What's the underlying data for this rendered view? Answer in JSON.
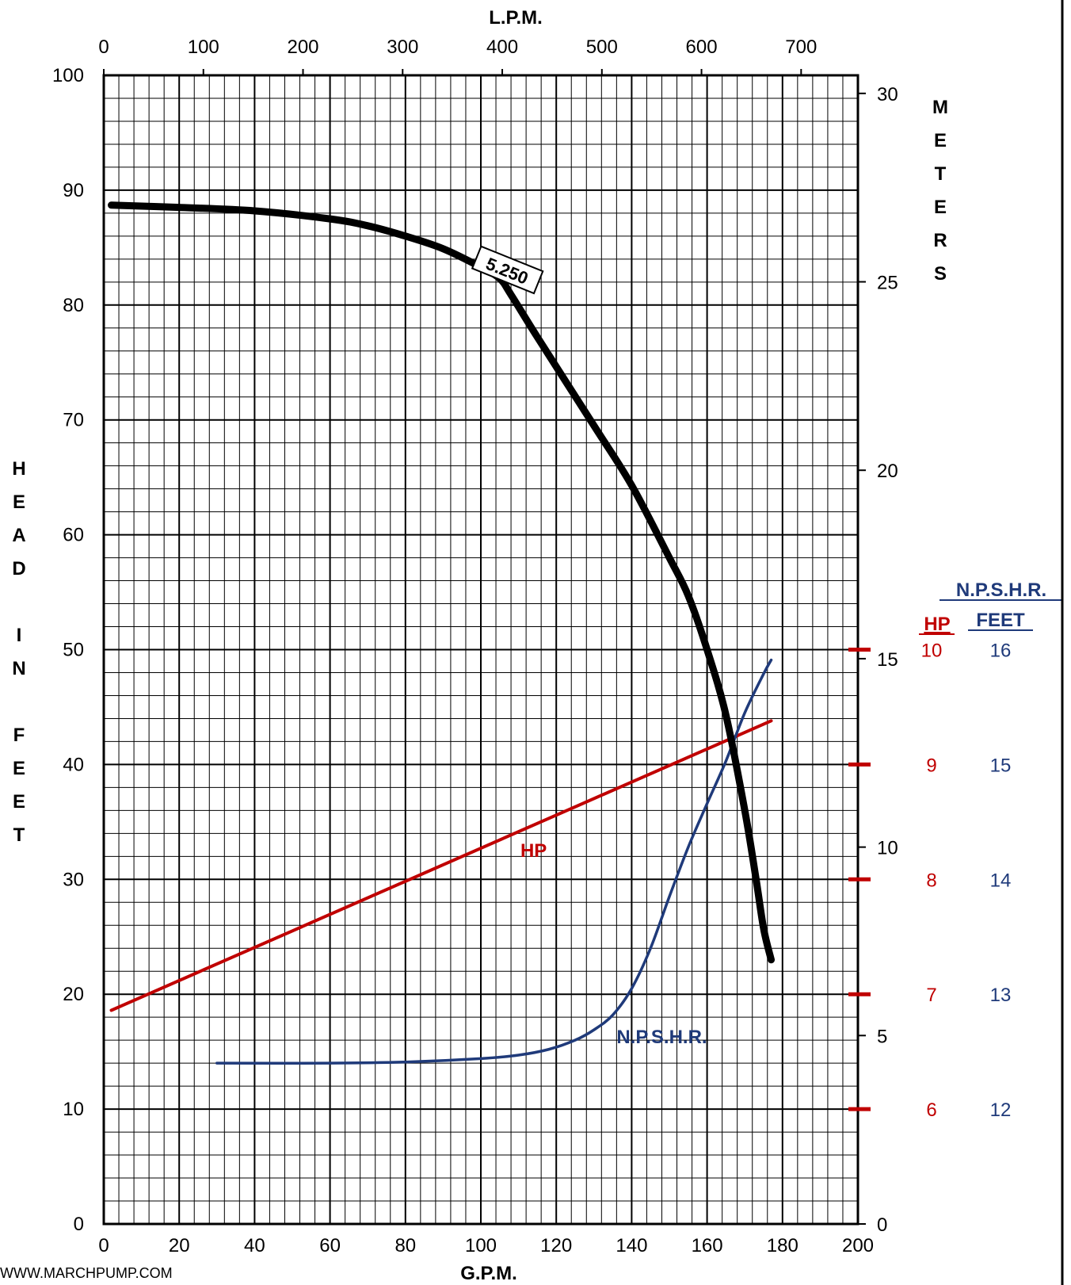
{
  "chart_data": {
    "type": "line",
    "x_axis": {
      "label": "G.P.M.",
      "range": [
        0,
        200
      ],
      "ticks": [
        0,
        20,
        40,
        60,
        80,
        100,
        120,
        140,
        160,
        180,
        200
      ]
    },
    "x2_axis": {
      "label": "L.P.M.",
      "range": [
        0,
        757
      ],
      "ticks": [
        0,
        100,
        200,
        300,
        400,
        500,
        600,
        700
      ]
    },
    "y_axis": {
      "label_letters": [
        "H",
        "E",
        "A",
        "D",
        "",
        "I",
        "N",
        "",
        "F",
        "E",
        "E",
        "T"
      ],
      "range": [
        0,
        100
      ],
      "ticks": [
        0,
        10,
        20,
        30,
        40,
        50,
        60,
        70,
        80,
        90,
        100
      ]
    },
    "y2_axis": {
      "label_letters": [
        "M",
        "E",
        "T",
        "E",
        "R",
        "S"
      ],
      "range": [
        0,
        30.48
      ],
      "ticks": [
        0,
        5,
        10,
        15,
        20,
        25,
        30
      ]
    },
    "hp_axis": {
      "header": "HP",
      "color": "#c00000",
      "ticks": [
        {
          "head": 10,
          "label": "6"
        },
        {
          "head": 20,
          "label": "7"
        },
        {
          "head": 30,
          "label": "8"
        },
        {
          "head": 40,
          "label": "9"
        },
        {
          "head": 50,
          "label": "10"
        }
      ]
    },
    "npshr_axis": {
      "header_line1": "N.P.S.H.R.",
      "header_line2": "FEET",
      "color": "#1f3a7a",
      "ticks": [
        {
          "head": 10,
          "label": "12"
        },
        {
          "head": 20,
          "label": "13"
        },
        {
          "head": 30,
          "label": "14"
        },
        {
          "head": 40,
          "label": "15"
        },
        {
          "head": 50,
          "label": "16"
        }
      ]
    },
    "grid": true,
    "series": [
      {
        "name": "5.250",
        "color": "#000000",
        "points": [
          [
            2,
            88.7
          ],
          [
            20,
            88.5
          ],
          [
            40,
            88.2
          ],
          [
            60,
            87.5
          ],
          [
            70,
            86.9
          ],
          [
            80,
            86.0
          ],
          [
            90,
            84.9
          ],
          [
            100,
            83.3
          ],
          [
            105,
            82.3
          ],
          [
            108,
            80.9
          ],
          [
            115,
            77.2
          ],
          [
            130,
            69.5
          ],
          [
            140,
            64.3
          ],
          [
            150,
            58.0
          ],
          [
            155,
            54.7
          ],
          [
            160,
            50.0
          ],
          [
            165,
            44.3
          ],
          [
            170,
            36.0
          ],
          [
            173,
            30.0
          ],
          [
            175,
            25.7
          ],
          [
            177,
            23.0
          ]
        ]
      },
      {
        "name": "HP",
        "color": "#c00000",
        "points": [
          [
            2,
            18.6
          ],
          [
            177,
            43.8
          ]
        ]
      },
      {
        "name": "N.P.S.H.R.",
        "color": "#1f3a7a",
        "points": [
          [
            30,
            14.0
          ],
          [
            60,
            14.0
          ],
          [
            80,
            14.1
          ],
          [
            100,
            14.4
          ],
          [
            110,
            14.7
          ],
          [
            118,
            15.2
          ],
          [
            125,
            16.0
          ],
          [
            130,
            16.9
          ],
          [
            135,
            18.2
          ],
          [
            140,
            20.5
          ],
          [
            145,
            24.0
          ],
          [
            150,
            28.5
          ],
          [
            155,
            32.8
          ],
          [
            160,
            36.6
          ],
          [
            165,
            40.3
          ],
          [
            170,
            44.5
          ],
          [
            175,
            47.9
          ],
          [
            177,
            49.1
          ]
        ]
      }
    ],
    "annotations": [
      {
        "text": "5.250",
        "x": 107,
        "y": 83.0,
        "color": "#000000"
      },
      {
        "text": "HP",
        "x": 114,
        "y": 32.5,
        "color": "#c00000"
      },
      {
        "text": "N.P.S.H.R.",
        "x": 148,
        "y": 16.3,
        "color": "#1f3a7a"
      }
    ]
  },
  "footer": {
    "url": "WWW.MARCHPUMP.COM"
  }
}
